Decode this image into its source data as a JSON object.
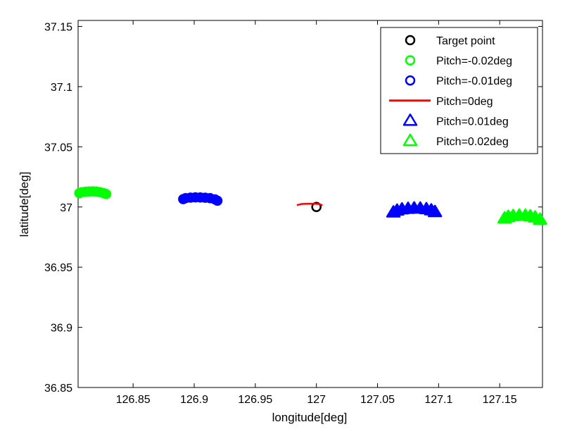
{
  "chart_data": {
    "type": "scatter",
    "xlabel": "longitude[deg]",
    "ylabel": "latitude[deg]",
    "xlim": [
      126.805,
      127.185
    ],
    "ylim": [
      36.85,
      37.155
    ],
    "xticks": [
      126.85,
      126.9,
      126.95,
      127,
      127.05,
      127.1,
      127.15
    ],
    "xtick_labels": [
      "126.85",
      "126.9",
      "126.95",
      "127",
      "127.05",
      "127.1",
      "127.15"
    ],
    "yticks": [
      36.85,
      36.9,
      36.95,
      37,
      37.05,
      37.1,
      37.15
    ],
    "ytick_labels": [
      "36.85",
      "36.9",
      "36.95",
      "37",
      "37.05",
      "37.1",
      "37.15"
    ],
    "grid": false,
    "legend_position": "top-right",
    "series": [
      {
        "name": "Target point",
        "marker": "circle",
        "color": "#000000",
        "points": [
          [
            127.0,
            37.0
          ]
        ]
      },
      {
        "name": "Pitch=-0.02deg",
        "marker": "circle",
        "color": "#00ff00",
        "points": [
          [
            126.806,
            37.0115
          ],
          [
            126.808,
            37.0122
          ],
          [
            126.811,
            37.0127
          ],
          [
            126.814,
            37.0129
          ],
          [
            126.817,
            37.013
          ],
          [
            126.82,
            37.0128
          ],
          [
            126.823,
            37.0123
          ],
          [
            126.826,
            37.0115
          ],
          [
            126.828,
            37.0108
          ]
        ]
      },
      {
        "name": "Pitch=-0.01deg",
        "marker": "circle",
        "color": "#0000ff",
        "points": [
          [
            126.891,
            37.0065
          ],
          [
            126.893,
            37.0073
          ],
          [
            126.897,
            37.0078
          ],
          [
            126.901,
            37.008
          ],
          [
            126.905,
            37.0079
          ],
          [
            126.909,
            37.0077
          ],
          [
            126.913,
            37.0073
          ],
          [
            126.917,
            37.0063
          ],
          [
            126.919,
            37.0052
          ]
        ]
      },
      {
        "name": "Pitch=0deg",
        "marker": "line",
        "color": "#ff0000",
        "points": [
          [
            126.984,
            37.0015
          ],
          [
            126.988,
            37.0025
          ],
          [
            126.993,
            37.0027
          ],
          [
            126.998,
            37.0027
          ],
          [
            127.002,
            37.0025
          ],
          [
            127.005,
            37.0014
          ]
        ]
      },
      {
        "name": "Pitch=0.01deg",
        "marker": "triangle",
        "color": "#0000ff",
        "points": [
          [
            127.063,
            36.9955
          ],
          [
            127.066,
            36.997
          ],
          [
            127.07,
            36.998
          ],
          [
            127.075,
            36.9985
          ],
          [
            127.08,
            36.9988
          ],
          [
            127.085,
            36.9987
          ],
          [
            127.09,
            36.9982
          ],
          [
            127.094,
            36.9972
          ],
          [
            127.097,
            36.9958
          ]
        ]
      },
      {
        "name": "Pitch=0.02deg",
        "marker": "triangle",
        "color": "#00ff00",
        "points": [
          [
            127.154,
            36.9905
          ],
          [
            127.157,
            36.9918
          ],
          [
            127.161,
            36.9925
          ],
          [
            127.166,
            36.9928
          ],
          [
            127.171,
            36.9927
          ],
          [
            127.175,
            36.9922
          ],
          [
            127.179,
            36.9913
          ],
          [
            127.183,
            36.9895
          ]
        ]
      }
    ]
  }
}
